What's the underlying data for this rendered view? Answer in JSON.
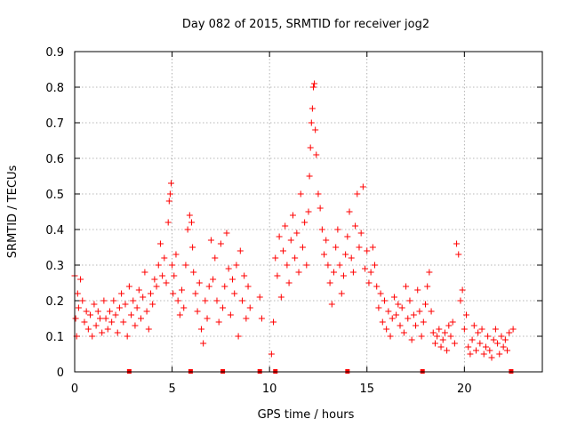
{
  "chart_data": {
    "type": "scatter",
    "title": "Day 082 of 2015, SRMTID for receiver jog2",
    "xlabel": "GPS time / hours",
    "ylabel": "SRMTID / TECUs",
    "xlim": [
      0,
      24
    ],
    "ylim": [
      0,
      0.9
    ],
    "xticks": [
      0,
      5,
      10,
      15,
      20
    ],
    "xtick_labels": [
      "0",
      "5",
      "10",
      "15",
      "20"
    ],
    "yticks": [
      0,
      0.1,
      0.2,
      0.3,
      0.4,
      0.5,
      0.6,
      0.7,
      0.8,
      0.9
    ],
    "ytick_labels": [
      "0",
      "0.1",
      "0.2",
      "0.3",
      "0.4",
      "0.5",
      "0.6",
      "0.7",
      "0.8",
      "0.9"
    ],
    "grid": true,
    "marker": "+",
    "color": "#ff0000",
    "series": [
      {
        "name": "SRMTID",
        "x": [
          0.0,
          0.05,
          0.1,
          0.15,
          0.2,
          0.3,
          0.4,
          0.5,
          0.6,
          0.7,
          0.8,
          0.9,
          1.0,
          1.1,
          1.2,
          1.3,
          1.4,
          1.5,
          1.6,
          1.7,
          1.8,
          1.9,
          2.0,
          2.1,
          2.2,
          2.3,
          2.4,
          2.5,
          2.6,
          2.7,
          2.8,
          2.9,
          3.0,
          3.1,
          3.2,
          3.3,
          3.4,
          3.5,
          3.6,
          3.7,
          3.8,
          3.9,
          4.0,
          4.1,
          4.2,
          4.3,
          4.4,
          4.5,
          4.6,
          4.7,
          4.8,
          4.85,
          4.9,
          4.95,
          5.0,
          5.05,
          5.1,
          5.2,
          5.3,
          5.4,
          5.5,
          5.6,
          5.7,
          5.8,
          5.9,
          6.0,
          6.05,
          6.1,
          6.2,
          6.3,
          6.4,
          6.5,
          6.6,
          6.7,
          6.8,
          6.9,
          7.0,
          7.1,
          7.2,
          7.3,
          7.4,
          7.5,
          7.6,
          7.7,
          7.8,
          7.9,
          8.0,
          8.1,
          8.2,
          8.3,
          8.4,
          8.5,
          8.6,
          8.7,
          8.8,
          8.9,
          9.0,
          9.5,
          9.6,
          10.1,
          10.2,
          10.3,
          10.4,
          10.5,
          10.6,
          10.7,
          10.8,
          10.9,
          11.0,
          11.1,
          11.2,
          11.3,
          11.4,
          11.5,
          11.6,
          11.7,
          11.8,
          11.9,
          12.0,
          12.05,
          12.1,
          12.15,
          12.2,
          12.25,
          12.3,
          12.35,
          12.4,
          12.5,
          12.6,
          12.7,
          12.8,
          12.9,
          13.0,
          13.1,
          13.2,
          13.3,
          13.4,
          13.5,
          13.6,
          13.7,
          13.8,
          13.9,
          14.0,
          14.1,
          14.2,
          14.3,
          14.4,
          14.5,
          14.6,
          14.7,
          14.8,
          14.9,
          15.0,
          15.1,
          15.2,
          15.3,
          15.4,
          15.5,
          15.6,
          15.7,
          15.8,
          15.9,
          16.0,
          16.1,
          16.2,
          16.3,
          16.4,
          16.5,
          16.6,
          16.7,
          16.8,
          16.9,
          17.0,
          17.1,
          17.2,
          17.3,
          17.4,
          17.5,
          17.6,
          17.7,
          17.8,
          17.9,
          18.0,
          18.1,
          18.2,
          18.3,
          18.4,
          18.5,
          18.6,
          18.7,
          18.8,
          18.9,
          19.0,
          19.1,
          19.2,
          19.3,
          19.4,
          19.5,
          19.6,
          19.7,
          19.8,
          19.9,
          20.0,
          20.1,
          20.2,
          20.3,
          20.4,
          20.5,
          20.6,
          20.7,
          20.8,
          20.9,
          21.0,
          21.1,
          21.2,
          21.3,
          21.4,
          21.5,
          21.6,
          21.7,
          21.8,
          21.9,
          22.0,
          22.1,
          22.2,
          22.3,
          22.5
        ],
        "y": [
          0.27,
          0.15,
          0.1,
          0.22,
          0.18,
          0.26,
          0.2,
          0.14,
          0.17,
          0.12,
          0.16,
          0.1,
          0.19,
          0.13,
          0.17,
          0.15,
          0.11,
          0.2,
          0.15,
          0.12,
          0.17,
          0.14,
          0.2,
          0.16,
          0.11,
          0.18,
          0.22,
          0.14,
          0.19,
          0.1,
          0.24,
          0.16,
          0.2,
          0.13,
          0.18,
          0.23,
          0.15,
          0.21,
          0.28,
          0.17,
          0.12,
          0.22,
          0.19,
          0.26,
          0.24,
          0.3,
          0.36,
          0.27,
          0.32,
          0.25,
          0.42,
          0.48,
          0.5,
          0.53,
          0.3,
          0.22,
          0.27,
          0.33,
          0.2,
          0.16,
          0.23,
          0.18,
          0.3,
          0.4,
          0.44,
          0.42,
          0.35,
          0.28,
          0.22,
          0.17,
          0.25,
          0.12,
          0.08,
          0.2,
          0.15,
          0.24,
          0.37,
          0.26,
          0.32,
          0.2,
          0.14,
          0.36,
          0.18,
          0.24,
          0.39,
          0.29,
          0.16,
          0.26,
          0.22,
          0.3,
          0.1,
          0.34,
          0.2,
          0.27,
          0.15,
          0.24,
          0.18,
          0.21,
          0.15,
          0.05,
          0.14,
          0.32,
          0.27,
          0.38,
          0.21,
          0.34,
          0.41,
          0.3,
          0.25,
          0.37,
          0.44,
          0.32,
          0.39,
          0.28,
          0.5,
          0.35,
          0.42,
          0.3,
          0.45,
          0.55,
          0.63,
          0.7,
          0.74,
          0.8,
          0.81,
          0.68,
          0.61,
          0.5,
          0.46,
          0.4,
          0.33,
          0.37,
          0.3,
          0.25,
          0.19,
          0.28,
          0.35,
          0.4,
          0.3,
          0.22,
          0.27,
          0.33,
          0.38,
          0.45,
          0.32,
          0.28,
          0.41,
          0.5,
          0.35,
          0.39,
          0.52,
          0.29,
          0.34,
          0.25,
          0.28,
          0.35,
          0.3,
          0.24,
          0.18,
          0.22,
          0.14,
          0.2,
          0.12,
          0.17,
          0.1,
          0.15,
          0.21,
          0.16,
          0.19,
          0.13,
          0.18,
          0.11,
          0.24,
          0.15,
          0.2,
          0.09,
          0.16,
          0.13,
          0.23,
          0.17,
          0.1,
          0.14,
          0.19,
          0.24,
          0.28,
          0.17,
          0.11,
          0.08,
          0.1,
          0.12,
          0.07,
          0.09,
          0.11,
          0.06,
          0.13,
          0.1,
          0.14,
          0.08,
          0.36,
          0.33,
          0.2,
          0.23,
          0.12,
          0.16,
          0.07,
          0.05,
          0.09,
          0.13,
          0.06,
          0.11,
          0.08,
          0.12,
          0.05,
          0.07,
          0.1,
          0.06,
          0.04,
          0.09,
          0.12,
          0.08,
          0.05,
          0.1,
          0.07,
          0.09,
          0.06,
          0.11,
          0.12
        ]
      }
    ],
    "gap_markers_x": [
      2.8,
      5.95,
      7.6,
      9.5,
      10.3,
      14.0,
      17.85,
      22.4
    ]
  }
}
